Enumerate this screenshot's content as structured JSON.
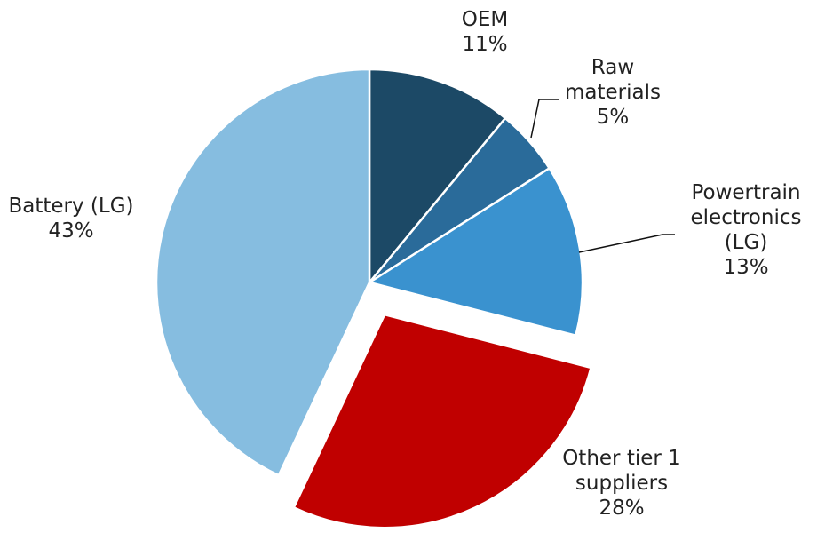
{
  "chart_data": {
    "type": "pie",
    "categories": [
      "OEM",
      "Raw materials",
      "Powertrain electronics (LG)",
      "Other tier 1 suppliers",
      "Battery (LG)"
    ],
    "values": [
      11,
      5,
      13,
      28,
      43
    ],
    "value_labels": [
      "11%",
      "5%",
      "13%",
      "28%",
      "43%"
    ],
    "colors": [
      "#1c4966",
      "#2a6b9a",
      "#3a92cf",
      "#c00000",
      "#86bde0"
    ],
    "explode": [
      false,
      false,
      false,
      true,
      false
    ]
  }
}
